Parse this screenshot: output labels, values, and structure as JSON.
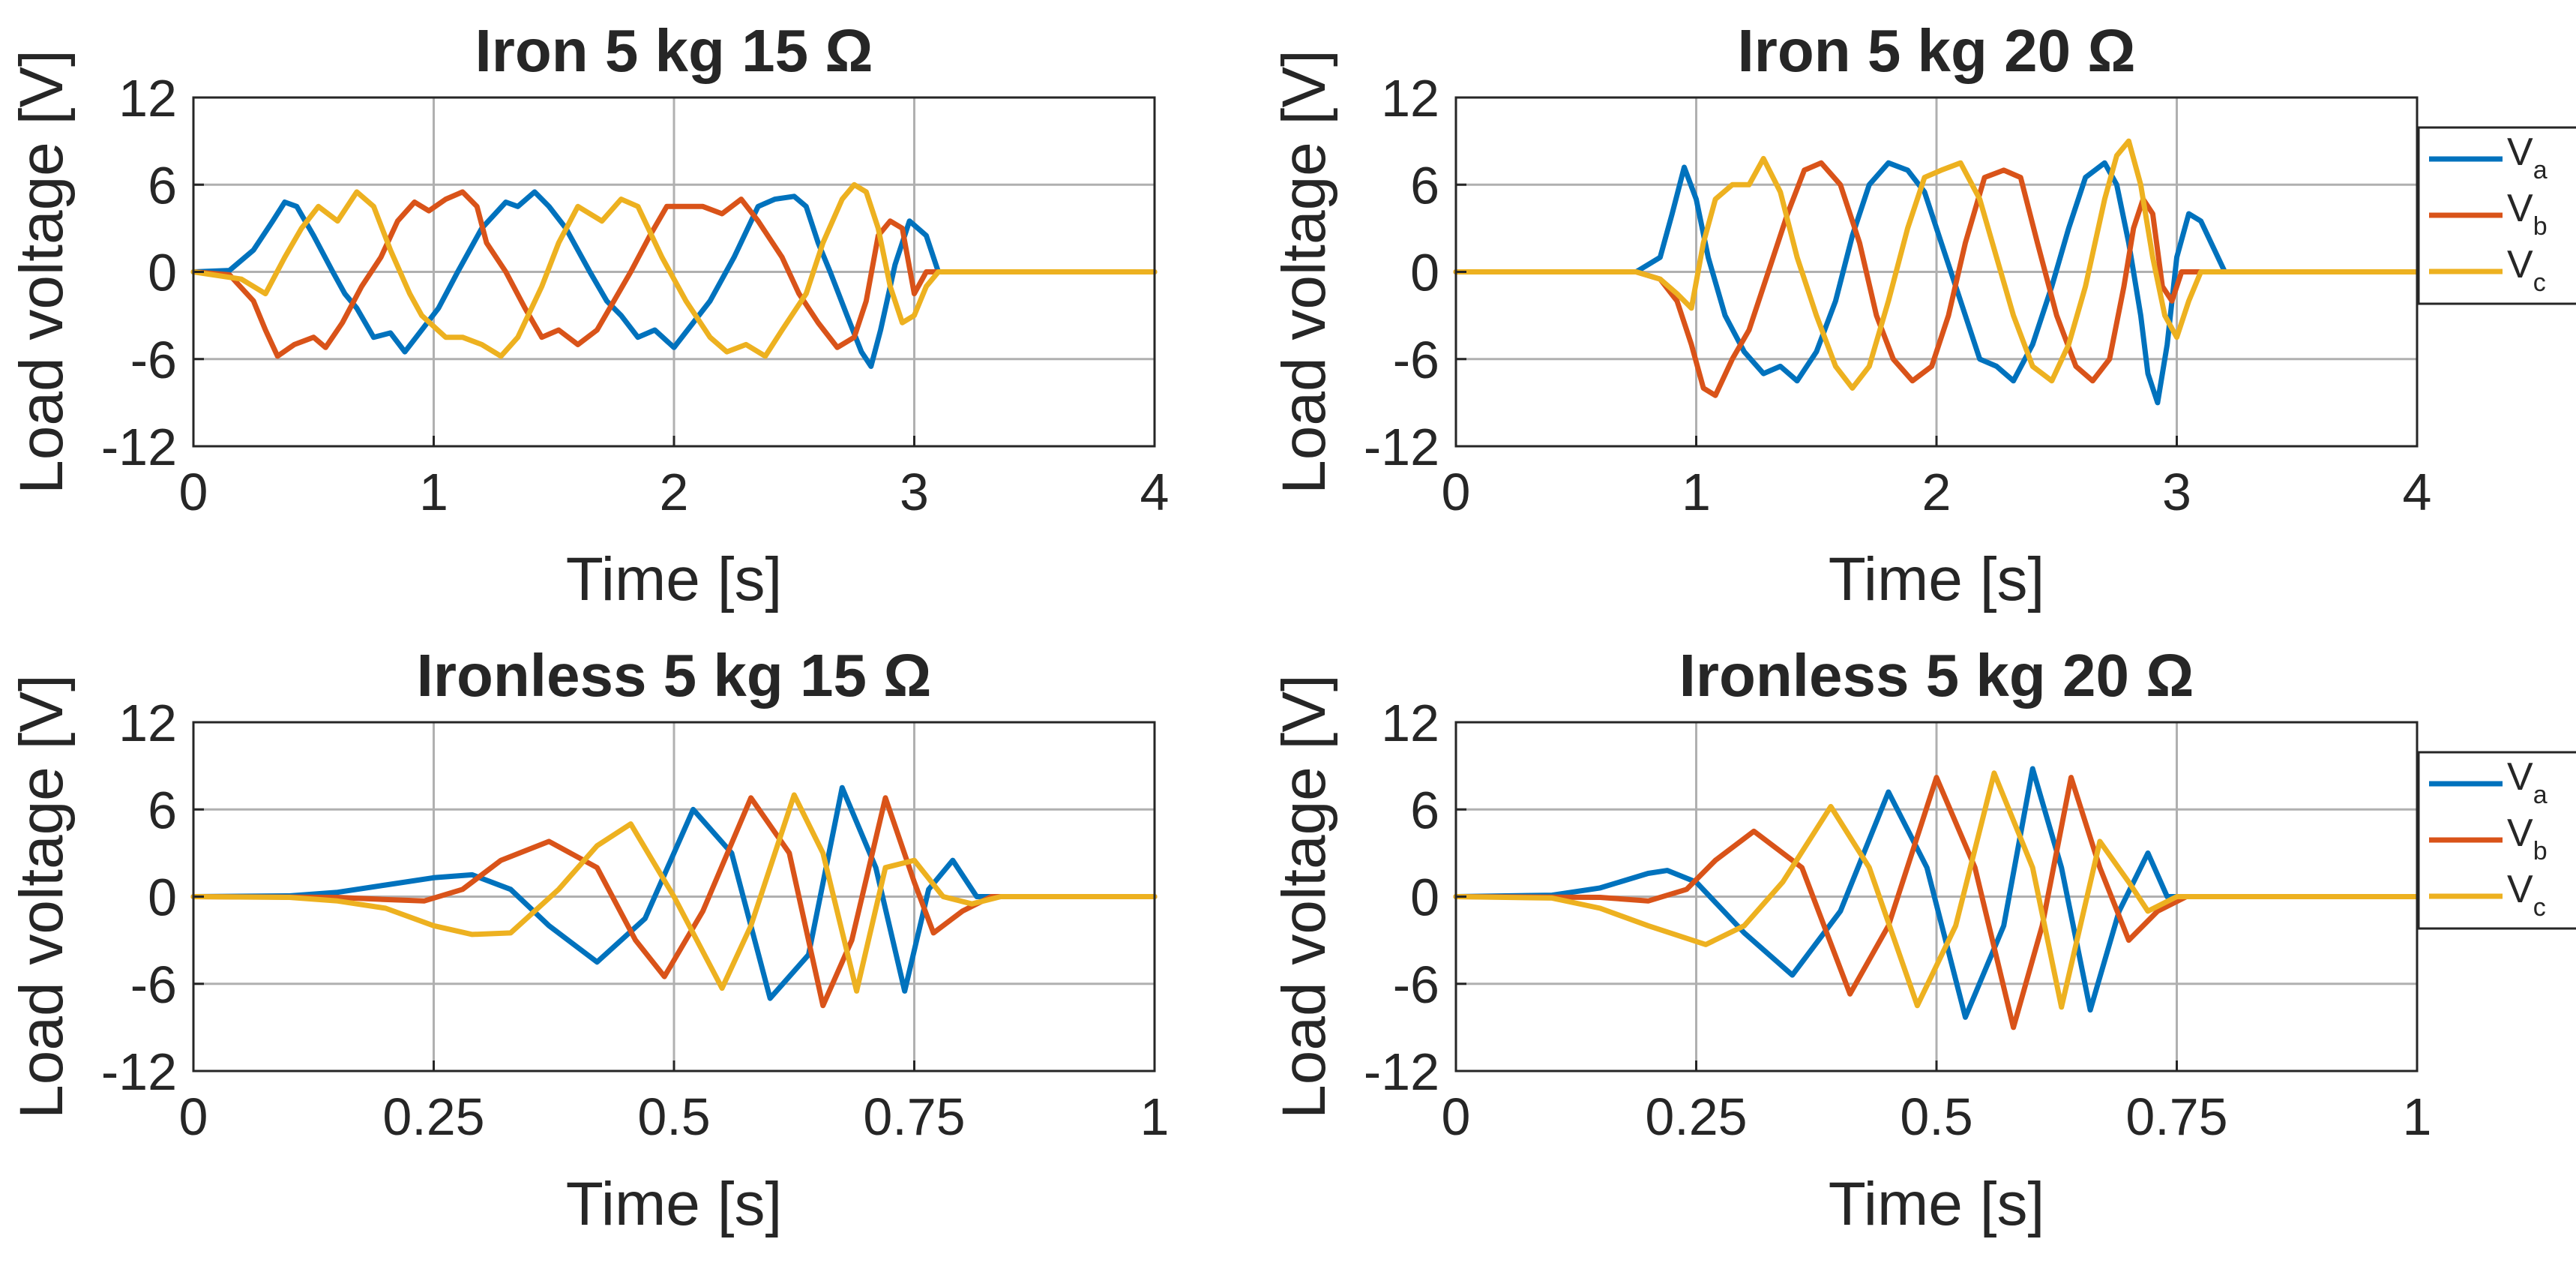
{
  "colors": {
    "Va": "#0072BD",
    "Vb": "#D95319",
    "Vc": "#EDB120",
    "grid_major": "#262626",
    "grid_minor": "#b0b0b0",
    "axis": "#262626"
  },
  "chart_data": [
    {
      "type": "line",
      "title": "Iron 5 kg 15 Ω",
      "xlabel": "Time [s]",
      "ylabel": "Load voltage [V]",
      "xlim": [
        0,
        4
      ],
      "ylim": [
        -12,
        12
      ],
      "xticks": [
        0,
        1,
        2,
        3,
        4
      ],
      "xtick_labels": [
        "0",
        "1",
        "2",
        "3",
        "4"
      ],
      "yticks": [
        12,
        6,
        0,
        -6,
        -12
      ],
      "ytick_labels": [
        "12",
        "6",
        "0",
        "-6",
        "-12"
      ],
      "grid": true,
      "legend": null,
      "series": [
        {
          "name": "Va",
          "x": [
            0,
            0.15,
            0.25,
            0.33,
            0.38,
            0.43,
            0.5,
            0.58,
            0.63,
            0.68,
            0.75,
            0.82,
            0.88,
            0.95,
            1.02,
            1.1,
            1.2,
            1.3,
            1.35,
            1.42,
            1.48,
            1.55,
            1.65,
            1.72,
            1.78,
            1.85,
            1.92,
            2.0,
            2.08,
            2.15,
            2.25,
            2.35,
            2.42,
            2.5,
            2.55,
            2.6,
            2.65,
            2.72,
            2.78,
            2.82,
            2.86,
            2.92,
            2.98,
            3.05,
            3.1,
            3.2,
            4.0
          ],
          "y": [
            0,
            0.1,
            1.5,
            3.5,
            4.8,
            4.5,
            2.5,
            0,
            -1.5,
            -2.5,
            -4.5,
            -4.2,
            -5.5,
            -4.0,
            -2.5,
            0,
            3,
            4.8,
            4.5,
            5.5,
            4.5,
            3,
            0,
            -2,
            -3,
            -4.5,
            -4.0,
            -5.2,
            -3.5,
            -2,
            1,
            4.5,
            5,
            5.2,
            4.5,
            2,
            0,
            -3,
            -5.5,
            -6.5,
            -4.0,
            0.5,
            3.5,
            2.5,
            0,
            0,
            0
          ]
        },
        {
          "name": "Vb",
          "x": [
            0,
            0.15,
            0.25,
            0.3,
            0.35,
            0.42,
            0.5,
            0.55,
            0.62,
            0.7,
            0.78,
            0.85,
            0.92,
            0.98,
            1.05,
            1.12,
            1.18,
            1.22,
            1.3,
            1.38,
            1.45,
            1.52,
            1.6,
            1.68,
            1.75,
            1.82,
            1.9,
            1.97,
            2.05,
            2.12,
            2.2,
            2.28,
            2.35,
            2.45,
            2.52,
            2.6,
            2.68,
            2.75,
            2.8,
            2.85,
            2.9,
            2.95,
            3.0,
            3.05,
            3.1,
            3.2,
            4.0
          ],
          "y": [
            0,
            -0.2,
            -2,
            -4,
            -5.8,
            -5,
            -4.5,
            -5.2,
            -3.5,
            -1,
            1,
            3.5,
            4.8,
            4.2,
            5.0,
            5.5,
            4.5,
            2,
            0,
            -2.5,
            -4.5,
            -4.0,
            -5.0,
            -4.0,
            -2,
            0,
            2.5,
            4.5,
            4.5,
            4.5,
            4.0,
            5.0,
            3.5,
            1,
            -1.5,
            -3.5,
            -5.2,
            -4.5,
            -2,
            2.5,
            3.5,
            3.0,
            -1.5,
            0,
            0,
            0,
            0
          ]
        },
        {
          "name": "Vc",
          "x": [
            0,
            0.2,
            0.3,
            0.38,
            0.45,
            0.52,
            0.6,
            0.68,
            0.75,
            0.82,
            0.9,
            0.95,
            1.05,
            1.12,
            1.2,
            1.28,
            1.35,
            1.45,
            1.52,
            1.6,
            1.7,
            1.78,
            1.85,
            1.95,
            2.05,
            2.15,
            2.22,
            2.3,
            2.38,
            2.45,
            2.55,
            2.62,
            2.7,
            2.75,
            2.8,
            2.85,
            2.9,
            2.95,
            3.0,
            3.05,
            3.1,
            3.2,
            4.0
          ],
          "y": [
            0,
            -0.5,
            -1.5,
            1,
            3,
            4.5,
            3.5,
            5.5,
            4.5,
            1.5,
            -1.5,
            -3,
            -4.5,
            -4.5,
            -5,
            -5.8,
            -4.5,
            -1,
            2,
            4.5,
            3.5,
            5.0,
            4.5,
            1,
            -2,
            -4.5,
            -5.5,
            -5.0,
            -5.8,
            -4.0,
            -1.5,
            2,
            5,
            6,
            5.5,
            3,
            -1,
            -3.5,
            -3.0,
            -1,
            0,
            0,
            0
          ]
        }
      ]
    },
    {
      "type": "line",
      "title": "Iron 5 kg 20 Ω",
      "xlabel": "Time [s]",
      "ylabel": "Load voltage [V]",
      "xlim": [
        0,
        4
      ],
      "ylim": [
        -12,
        12
      ],
      "xticks": [
        0,
        1,
        2,
        3,
        4
      ],
      "xtick_labels": [
        "0",
        "1",
        "2",
        "3",
        "4"
      ],
      "yticks": [
        12,
        6,
        0,
        -6,
        -12
      ],
      "ytick_labels": [
        "12",
        "6",
        "0",
        "-6",
        "-12"
      ],
      "grid": true,
      "legend": {
        "placement": "outside-right",
        "entries": [
          {
            "main": "V",
            "sub": "a"
          },
          {
            "main": "V",
            "sub": "b"
          },
          {
            "main": "V",
            "sub": "c"
          }
        ]
      },
      "series": [
        {
          "name": "Va",
          "x": [
            0,
            0.75,
            0.85,
            0.9,
            0.95,
            1.0,
            1.05,
            1.12,
            1.2,
            1.28,
            1.35,
            1.42,
            1.5,
            1.58,
            1.65,
            1.72,
            1.8,
            1.88,
            1.95,
            2.02,
            2.1,
            2.18,
            2.25,
            2.32,
            2.4,
            2.48,
            2.55,
            2.62,
            2.7,
            2.75,
            2.8,
            2.85,
            2.88,
            2.92,
            2.96,
            3.0,
            3.05,
            3.1,
            3.2,
            4.0
          ],
          "y": [
            0,
            0,
            1,
            4,
            7.2,
            5,
            1,
            -3,
            -5.5,
            -7,
            -6.5,
            -7.5,
            -5.5,
            -2,
            2.5,
            6,
            7.5,
            7,
            5.5,
            2,
            -2,
            -6,
            -6.5,
            -7.5,
            -5,
            -1,
            3,
            6.5,
            7.5,
            6,
            2,
            -3,
            -7,
            -9,
            -5,
            1,
            4,
            3.5,
            0,
            0
          ]
        },
        {
          "name": "Vb",
          "x": [
            0,
            0.75,
            0.85,
            0.92,
            0.98,
            1.03,
            1.08,
            1.15,
            1.22,
            1.3,
            1.38,
            1.45,
            1.52,
            1.6,
            1.68,
            1.75,
            1.82,
            1.9,
            1.98,
            2.05,
            2.12,
            2.2,
            2.28,
            2.35,
            2.42,
            2.5,
            2.58,
            2.65,
            2.72,
            2.78,
            2.82,
            2.86,
            2.9,
            2.94,
            2.98,
            3.02,
            3.08,
            3.2,
            4.0
          ],
          "y": [
            0,
            0,
            -0.5,
            -2,
            -5,
            -8,
            -8.5,
            -6,
            -4,
            0,
            4,
            7,
            7.5,
            6,
            2,
            -3,
            -6,
            -7.5,
            -6.5,
            -3,
            2,
            6.5,
            7,
            6.5,
            2,
            -3,
            -6.5,
            -7.5,
            -6,
            -1,
            3,
            5,
            4,
            -1,
            -2,
            0,
            0,
            0,
            0
          ]
        },
        {
          "name": "Vc",
          "x": [
            0,
            0.75,
            0.85,
            0.92,
            0.98,
            1.03,
            1.08,
            1.15,
            1.22,
            1.28,
            1.35,
            1.42,
            1.5,
            1.58,
            1.65,
            1.72,
            1.8,
            1.88,
            1.95,
            2.02,
            2.1,
            2.18,
            2.25,
            2.32,
            2.4,
            2.48,
            2.55,
            2.62,
            2.7,
            2.75,
            2.8,
            2.85,
            2.9,
            2.95,
            3.0,
            3.05,
            3.1,
            3.2,
            4.0
          ],
          "y": [
            0,
            0,
            -0.5,
            -1.5,
            -2.5,
            2,
            5,
            6,
            6,
            7.8,
            5.5,
            1,
            -3,
            -6.5,
            -8,
            -6.5,
            -2,
            3,
            6.5,
            7,
            7.5,
            5,
            1,
            -3,
            -6.5,
            -7.5,
            -5,
            -1,
            5,
            8,
            9,
            6,
            1,
            -3,
            -4.5,
            -2,
            0,
            0,
            0
          ]
        }
      ]
    },
    {
      "type": "line",
      "title": "Ironless 5 kg 15 Ω",
      "xlabel": "Time [s]",
      "ylabel": "Load voltage [V]",
      "xlim": [
        0,
        1
      ],
      "ylim": [
        -12,
        12
      ],
      "xticks": [
        0,
        0.25,
        0.5,
        0.75,
        1
      ],
      "xtick_labels": [
        "0",
        "0.25",
        "0.5",
        "0.75",
        "1"
      ],
      "yticks": [
        12,
        6,
        0,
        -6,
        -12
      ],
      "ytick_labels": [
        "12",
        "6",
        "0",
        "-6",
        "-12"
      ],
      "grid": true,
      "legend": null,
      "series": [
        {
          "name": "Va",
          "x": [
            0,
            0.1,
            0.15,
            0.2,
            0.25,
            0.29,
            0.33,
            0.37,
            0.42,
            0.47,
            0.52,
            0.56,
            0.6,
            0.64,
            0.675,
            0.71,
            0.74,
            0.765,
            0.79,
            0.815,
            0.84,
            1.0
          ],
          "y": [
            0,
            0.05,
            0.3,
            0.8,
            1.3,
            1.5,
            0.5,
            -2,
            -4.5,
            -1.5,
            6,
            3,
            -7,
            -4,
            7.5,
            2,
            -6.5,
            0.5,
            2.5,
            0,
            0,
            0
          ]
        },
        {
          "name": "Vb",
          "x": [
            0,
            0.15,
            0.2,
            0.24,
            0.28,
            0.32,
            0.37,
            0.42,
            0.46,
            0.49,
            0.53,
            0.58,
            0.62,
            0.655,
            0.685,
            0.72,
            0.75,
            0.77,
            0.8,
            0.83,
            1.0
          ],
          "y": [
            0,
            -0.05,
            -0.2,
            -0.3,
            0.5,
            2.5,
            3.8,
            2,
            -3,
            -5.5,
            -1,
            6.8,
            3,
            -7.5,
            -3,
            6.8,
            1,
            -2.5,
            -1,
            0,
            0
          ]
        },
        {
          "name": "Vc",
          "x": [
            0,
            0.1,
            0.15,
            0.2,
            0.25,
            0.29,
            0.33,
            0.38,
            0.42,
            0.455,
            0.5,
            0.55,
            0.58,
            0.625,
            0.655,
            0.69,
            0.72,
            0.75,
            0.78,
            0.81,
            0.84,
            1.0
          ],
          "y": [
            0,
            -0.05,
            -0.3,
            -0.8,
            -2,
            -2.6,
            -2.5,
            0.5,
            3.5,
            5,
            0,
            -6.3,
            -2,
            7,
            3,
            -6.5,
            2,
            2.5,
            0,
            -0.5,
            0,
            0
          ]
        }
      ]
    },
    {
      "type": "line",
      "title": "Ironless 5 kg 20 Ω",
      "xlabel": "Time [s]",
      "ylabel": "Load voltage [V]",
      "xlim": [
        0,
        1
      ],
      "ylim": [
        -12,
        12
      ],
      "xticks": [
        0,
        0.25,
        0.5,
        0.75,
        1
      ],
      "xtick_labels": [
        "0",
        "0.25",
        "0.5",
        "0.75",
        "1"
      ],
      "yticks": [
        12,
        6,
        0,
        -6,
        -12
      ],
      "ytick_labels": [
        "12",
        "6",
        "0",
        "-6",
        "-12"
      ],
      "grid": true,
      "legend": {
        "placement": "outside-right",
        "entries": [
          {
            "main": "V",
            "sub": "a"
          },
          {
            "main": "V",
            "sub": "b"
          },
          {
            "main": "V",
            "sub": "c"
          }
        ]
      },
      "series": [
        {
          "name": "Va",
          "x": [
            0,
            0.1,
            0.15,
            0.2,
            0.22,
            0.25,
            0.3,
            0.35,
            0.4,
            0.45,
            0.49,
            0.53,
            0.57,
            0.6,
            0.63,
            0.66,
            0.69,
            0.72,
            0.74,
            0.77,
            1.0
          ],
          "y": [
            0,
            0.1,
            0.6,
            1.6,
            1.8,
            1,
            -2.5,
            -5.4,
            -1,
            7.2,
            2,
            -8.3,
            -2,
            8.8,
            2,
            -7.8,
            -1,
            3,
            0,
            0,
            0
          ]
        },
        {
          "name": "Vb",
          "x": [
            0,
            0.15,
            0.2,
            0.24,
            0.27,
            0.31,
            0.36,
            0.41,
            0.45,
            0.5,
            0.54,
            0.58,
            0.61,
            0.64,
            0.67,
            0.7,
            0.73,
            0.76,
            1.0
          ],
          "y": [
            0,
            -0.05,
            -0.3,
            0.5,
            2.5,
            4.5,
            2,
            -6.7,
            -2,
            8.2,
            2,
            -9,
            -2,
            8.2,
            2,
            -3,
            -1,
            0,
            0
          ]
        },
        {
          "name": "Vc",
          "x": [
            0,
            0.1,
            0.15,
            0.2,
            0.26,
            0.3,
            0.34,
            0.39,
            0.43,
            0.48,
            0.52,
            0.56,
            0.6,
            0.63,
            0.67,
            0.7,
            0.72,
            0.75,
            1.0
          ],
          "y": [
            0,
            -0.1,
            -0.8,
            -2,
            -3.3,
            -2,
            1,
            6.2,
            2,
            -7.5,
            -2,
            8.5,
            2,
            -7.6,
            3.8,
            1,
            -1,
            0,
            0
          ]
        }
      ]
    }
  ]
}
